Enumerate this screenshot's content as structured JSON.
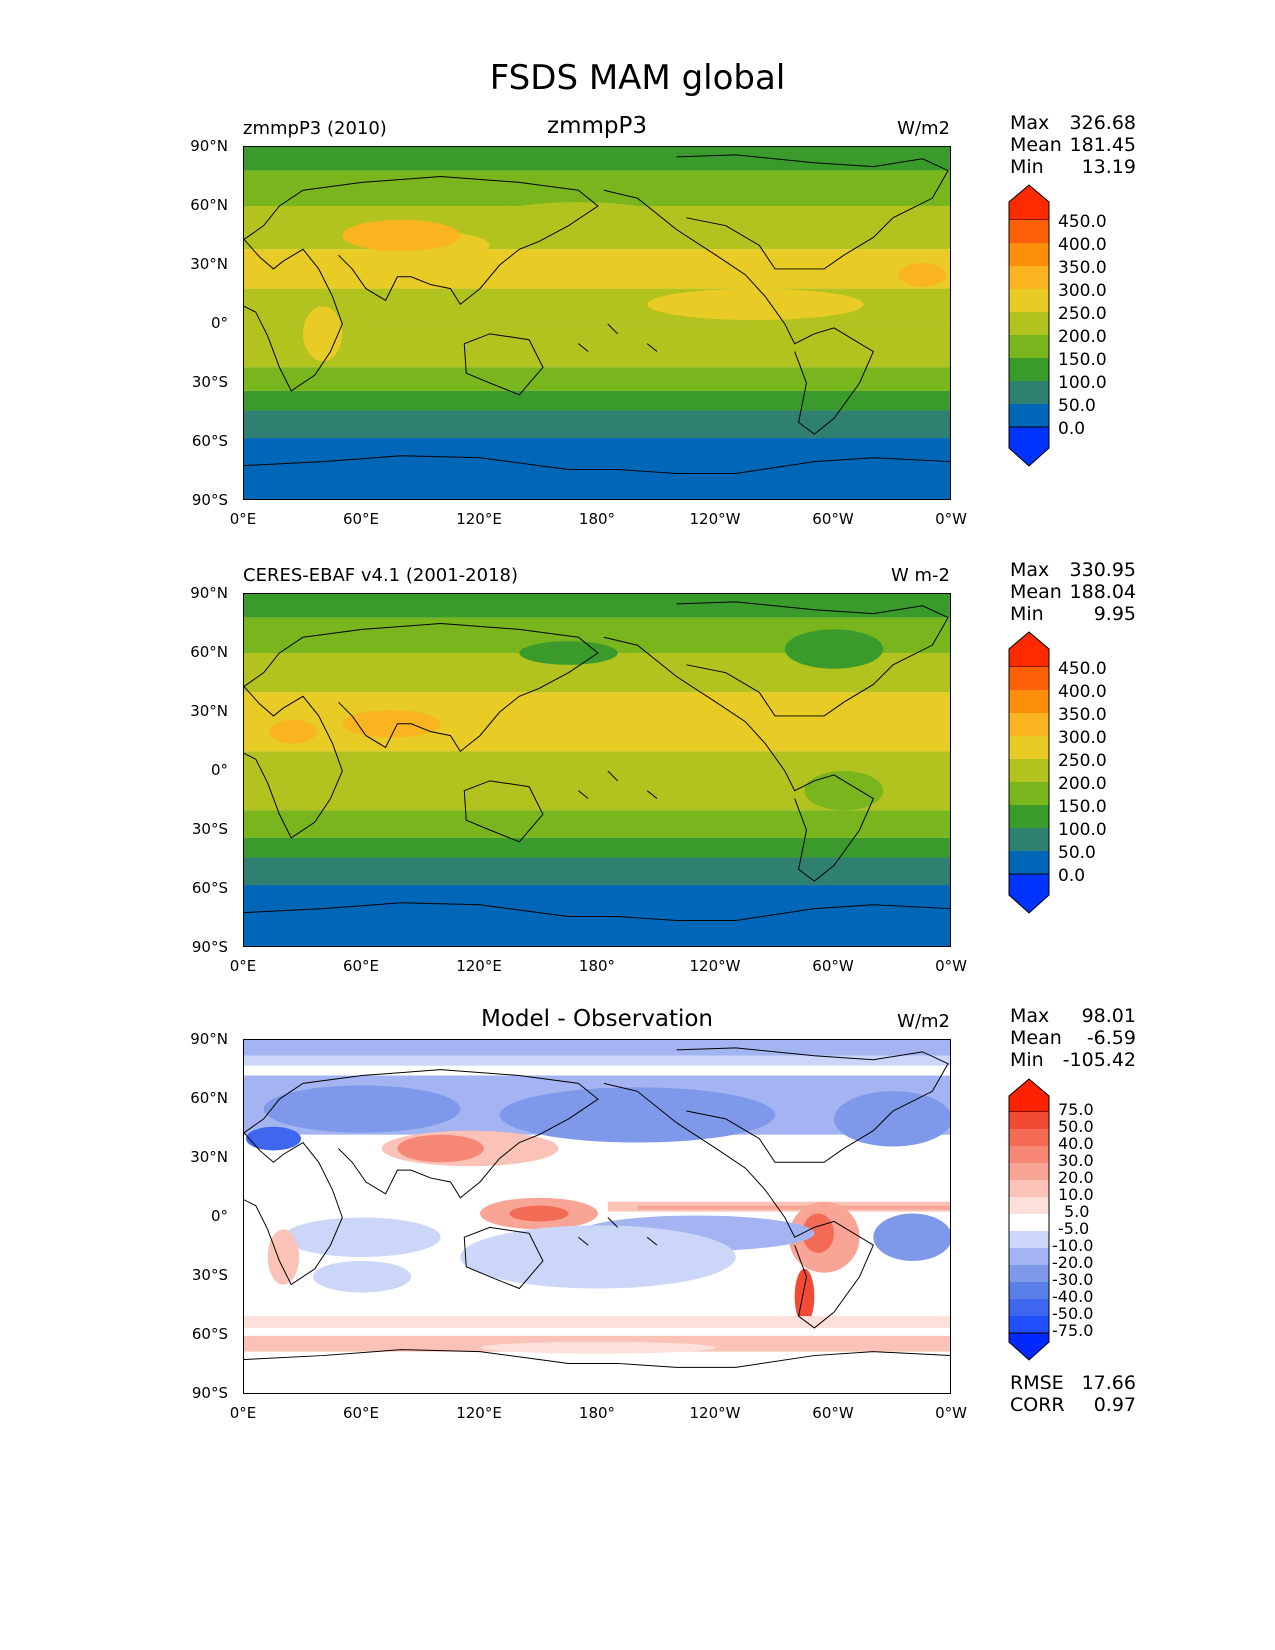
{
  "figure": {
    "title": "FSDS MAM global"
  },
  "axes": {
    "lat_labels": [
      "90°N",
      "60°N",
      "30°N",
      "0°",
      "30°S",
      "60°S",
      "90°S"
    ],
    "lon_labels": [
      "0°E",
      "60°E",
      "120°E",
      "180°",
      "120°W",
      "60°W",
      "0°W"
    ]
  },
  "panels": [
    {
      "left_title": "zmmpP3 (2010)",
      "center_title": "zmmpP3",
      "units": "W/m2",
      "stats": [
        {
          "label": "Max",
          "value": "326.68"
        },
        {
          "label": "Mean",
          "value": "181.45"
        },
        {
          "label": "Min",
          "value": "13.19"
        }
      ],
      "colorbar_labels": [
        "450.0",
        "400.0",
        "350.0",
        "300.0",
        "250.0",
        "200.0",
        "150.0",
        "100.0",
        "50.0",
        "0.0"
      ]
    },
    {
      "left_title": "CERES-EBAF v4.1 (2001-2018)",
      "center_title": "",
      "units": "W m-2",
      "stats": [
        {
          "label": "Max",
          "value": "330.95"
        },
        {
          "label": "Mean",
          "value": "188.04"
        },
        {
          "label": "Min",
          "value": "9.95"
        }
      ],
      "colorbar_labels": [
        "450.0",
        "400.0",
        "350.0",
        "300.0",
        "250.0",
        "200.0",
        "150.0",
        "100.0",
        "50.0",
        "0.0"
      ]
    },
    {
      "left_title": "",
      "center_title": "Model - Observation",
      "units": "W/m2",
      "stats": [
        {
          "label": "Max",
          "value": "98.01"
        },
        {
          "label": "Mean",
          "value": "-6.59"
        },
        {
          "label": "Min",
          "value": "-105.42"
        }
      ],
      "colorbar_labels": [
        "75.0",
        "50.0",
        "40.0",
        "30.0",
        "20.0",
        "10.0",
        "5.0",
        "-5.0",
        "-10.0",
        "-20.0",
        "-30.0",
        "-40.0",
        "-50.0",
        "-75.0"
      ],
      "extra_stats": [
        {
          "label": "RMSE",
          "value": "17.66"
        },
        {
          "label": "CORR",
          "value": "0.97"
        }
      ]
    }
  ],
  "colors": {
    "abs_scale": [
      "#0033ff",
      "#0066b8",
      "#2f8070",
      "#3a9b2c",
      "#79b51d",
      "#b2c21e",
      "#e8cb24",
      "#f9b420",
      "#fd8e0c",
      "#fd6008",
      "#ff2a00"
    ],
    "diff_scale": [
      "#0029ff",
      "#1f4fff",
      "#3f66ee",
      "#5a7ee8",
      "#7e98ea",
      "#a4b4f2",
      "#cbd6f8",
      "#ffffff",
      "#fde0da",
      "#fbc3b8",
      "#f8a596",
      "#f78775",
      "#f46b55",
      "#f24a34",
      "#ff2200"
    ],
    "coastline": "#000000"
  }
}
